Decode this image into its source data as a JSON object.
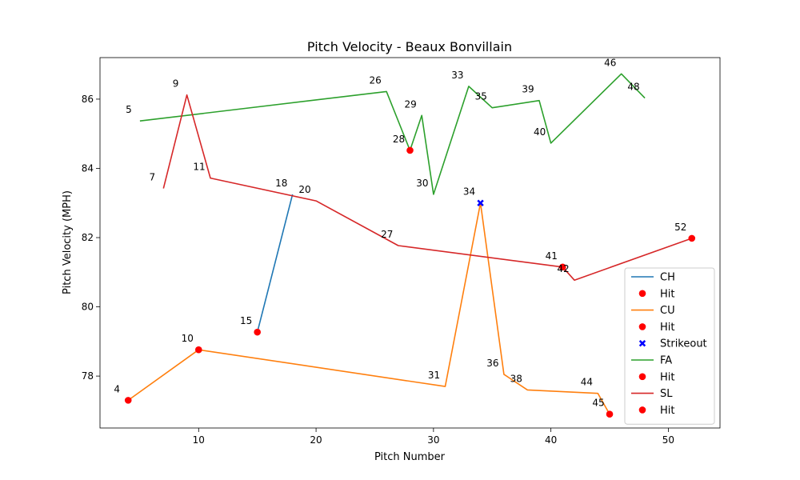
{
  "chart_data": {
    "type": "line",
    "title": "Pitch Velocity - Beaux Bonvillain",
    "xlabel": "Pitch Number",
    "ylabel": "Pitch Velocity (MPH)",
    "xlim": [
      1.6,
      54.4
    ],
    "ylim": [
      76.5,
      87.2
    ],
    "xticks": [
      10,
      20,
      30,
      40,
      50
    ],
    "yticks": [
      78,
      80,
      82,
      84,
      86
    ],
    "grid": false,
    "legend_position": "lower right",
    "series": [
      {
        "name": "CH",
        "color": "#1f77b4",
        "points": [
          {
            "x": 15,
            "y": 79.27
          },
          {
            "x": 18,
            "y": 83.25
          }
        ],
        "hits": [
          {
            "x": 15,
            "y": 79.27
          }
        ],
        "strikeouts": []
      },
      {
        "name": "CU",
        "color": "#ff7f0e",
        "points": [
          {
            "x": 4,
            "y": 77.3
          },
          {
            "x": 10,
            "y": 78.76
          },
          {
            "x": 31,
            "y": 77.7
          },
          {
            "x": 34,
            "y": 83.0
          },
          {
            "x": 36,
            "y": 78.05
          },
          {
            "x": 38,
            "y": 77.6
          },
          {
            "x": 44,
            "y": 77.5
          },
          {
            "x": 45,
            "y": 76.9
          }
        ],
        "hits": [
          {
            "x": 4,
            "y": 77.3
          },
          {
            "x": 10,
            "y": 78.76
          },
          {
            "x": 45,
            "y": 76.9
          }
        ],
        "strikeouts": [
          {
            "x": 34,
            "y": 83.0
          }
        ]
      },
      {
        "name": "FA",
        "color": "#2ca02c",
        "points": [
          {
            "x": 5,
            "y": 85.37
          },
          {
            "x": 26,
            "y": 86.22
          },
          {
            "x": 28,
            "y": 84.52
          },
          {
            "x": 29,
            "y": 85.53
          },
          {
            "x": 30,
            "y": 83.25
          },
          {
            "x": 33,
            "y": 86.37
          },
          {
            "x": 35,
            "y": 85.75
          },
          {
            "x": 39,
            "y": 85.96
          },
          {
            "x": 40,
            "y": 84.73
          },
          {
            "x": 46,
            "y": 86.73
          },
          {
            "x": 48,
            "y": 86.03
          }
        ],
        "hits": [
          {
            "x": 28,
            "y": 84.52
          }
        ],
        "strikeouts": []
      },
      {
        "name": "SL",
        "color": "#d62728",
        "points": [
          {
            "x": 7,
            "y": 83.42
          },
          {
            "x": 9,
            "y": 86.12
          },
          {
            "x": 11,
            "y": 83.72
          },
          {
            "x": 20,
            "y": 83.06
          },
          {
            "x": 27,
            "y": 81.77
          },
          {
            "x": 41,
            "y": 81.15
          },
          {
            "x": 42,
            "y": 80.77
          },
          {
            "x": 52,
            "y": 81.98
          }
        ],
        "hits": [
          {
            "x": 41,
            "y": 81.15
          },
          {
            "x": 52,
            "y": 81.98
          }
        ],
        "strikeouts": []
      }
    ],
    "hit_marker_color": "#ff0000",
    "strikeout_marker_color": "#0000ff",
    "annotations": [
      {
        "text": "4",
        "x": 4,
        "y": 77.3
      },
      {
        "text": "5",
        "x": 5,
        "y": 85.37
      },
      {
        "text": "7",
        "x": 7,
        "y": 83.42
      },
      {
        "text": "9",
        "x": 9,
        "y": 86.12
      },
      {
        "text": "10",
        "x": 10,
        "y": 78.76
      },
      {
        "text": "11",
        "x": 11,
        "y": 83.72
      },
      {
        "text": "15",
        "x": 15,
        "y": 79.27
      },
      {
        "text": "18",
        "x": 18,
        "y": 83.25
      },
      {
        "text": "20",
        "x": 20,
        "y": 83.06
      },
      {
        "text": "26",
        "x": 26,
        "y": 86.22
      },
      {
        "text": "27",
        "x": 27,
        "y": 81.77
      },
      {
        "text": "28",
        "x": 28,
        "y": 84.52
      },
      {
        "text": "29",
        "x": 29,
        "y": 85.53
      },
      {
        "text": "30",
        "x": 30,
        "y": 83.25
      },
      {
        "text": "31",
        "x": 31,
        "y": 77.7
      },
      {
        "text": "33",
        "x": 33,
        "y": 86.37
      },
      {
        "text": "34",
        "x": 34,
        "y": 83.0
      },
      {
        "text": "35",
        "x": 35,
        "y": 85.75
      },
      {
        "text": "36",
        "x": 36,
        "y": 78.05
      },
      {
        "text": "38",
        "x": 38,
        "y": 77.6
      },
      {
        "text": "39",
        "x": 39,
        "y": 85.96
      },
      {
        "text": "40",
        "x": 40,
        "y": 84.73
      },
      {
        "text": "41",
        "x": 41,
        "y": 81.15
      },
      {
        "text": "42",
        "x": 42,
        "y": 80.77
      },
      {
        "text": "44",
        "x": 44,
        "y": 77.5
      },
      {
        "text": "45",
        "x": 45,
        "y": 76.9
      },
      {
        "text": "46",
        "x": 46,
        "y": 86.73
      },
      {
        "text": "48",
        "x": 48,
        "y": 86.03
      },
      {
        "text": "52",
        "x": 52,
        "y": 81.98
      }
    ],
    "legend": [
      {
        "type": "line",
        "label": "CH",
        "color": "#1f77b4"
      },
      {
        "type": "hit",
        "label": "Hit",
        "color": "#ff0000"
      },
      {
        "type": "line",
        "label": "CU",
        "color": "#ff7f0e"
      },
      {
        "type": "hit",
        "label": "Hit",
        "color": "#ff0000"
      },
      {
        "type": "strikeout",
        "label": "Strikeout",
        "color": "#0000ff"
      },
      {
        "type": "line",
        "label": "FA",
        "color": "#2ca02c"
      },
      {
        "type": "hit",
        "label": "Hit",
        "color": "#ff0000"
      },
      {
        "type": "line",
        "label": "SL",
        "color": "#d62728"
      },
      {
        "type": "hit",
        "label": "Hit",
        "color": "#ff0000"
      }
    ]
  }
}
